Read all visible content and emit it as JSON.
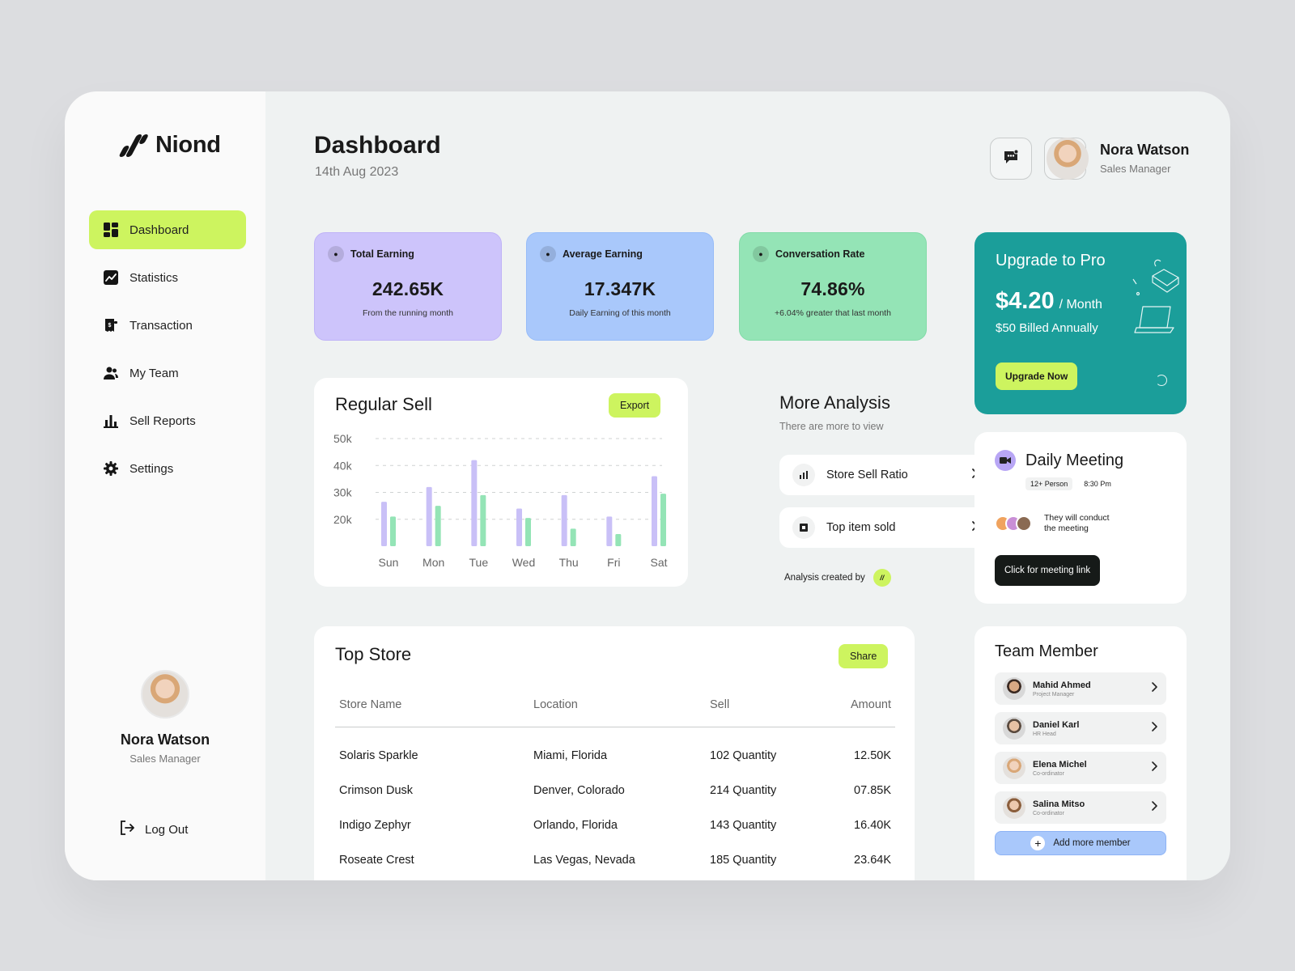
{
  "brand": {
    "name": "Niond"
  },
  "sidebar": {
    "items": [
      {
        "label": "Dashboard",
        "icon": "grid-icon"
      },
      {
        "label": "Statistics",
        "icon": "chart-line-icon"
      },
      {
        "label": "Transaction",
        "icon": "receipt-icon"
      },
      {
        "label": "My Team",
        "icon": "team-icon"
      },
      {
        "label": "Sell Reports",
        "icon": "bar-chart-icon"
      },
      {
        "label": "Settings",
        "icon": "gear-icon"
      }
    ],
    "profile": {
      "name": "Nora Watson",
      "role": "Sales Manager"
    },
    "logout_label": "Log Out"
  },
  "header": {
    "title": "Dashboard",
    "date": "14th Aug 2023",
    "user": {
      "name": "Nora Watson",
      "role": "Sales Manager"
    }
  },
  "stats": [
    {
      "label": "Total Earning",
      "value": "242.65K",
      "sub": "From the running month",
      "color": "#cdc4fb"
    },
    {
      "label": "Average Earning",
      "value": "17.347K",
      "sub": "Daily Earning of this month",
      "color": "#a9c8fb"
    },
    {
      "label": "Conversation  Rate",
      "value": "74.86%",
      "sub": "+6.04% greater that last month",
      "color": "#94e4b6"
    }
  ],
  "upgrade": {
    "title": "Upgrade to Pro",
    "price": "$4.20",
    "period": "/ Month",
    "billed": "$50 Billed Annually",
    "button": "Upgrade Now"
  },
  "regular_sell": {
    "title": "Regular Sell",
    "export_label": "Export"
  },
  "chart_data": {
    "type": "bar",
    "categories": [
      "Sun",
      "Mon",
      "Tue",
      "Wed",
      "Thu",
      "Fri",
      "Sat"
    ],
    "y_ticks": [
      "50k",
      "40k",
      "30k",
      "20k"
    ],
    "ylim": [
      10,
      50
    ],
    "series": [
      {
        "values": [
          26.5,
          32,
          42,
          24,
          29,
          21,
          36
        ],
        "color": "#c9c0f7"
      },
      {
        "values": [
          21,
          25,
          29,
          20.5,
          16.5,
          14.5,
          29.5
        ],
        "color": "#94e4b6"
      }
    ],
    "grid": true
  },
  "more_analysis": {
    "title": "More  Analysis",
    "subtitle": "There are more to view",
    "items": [
      {
        "label": "Store Sell Ratio"
      },
      {
        "label": "Top item sold"
      }
    ],
    "created_by": "Analysis created by"
  },
  "meeting": {
    "title": "Daily Meeting",
    "persons": "12+ Person",
    "time": "8:30 Pm",
    "desc_line1": "They will conduct",
    "desc_line2": "the meeting",
    "button": "Click for meeting link"
  },
  "top_store": {
    "title": "Top Store",
    "share_label": "Share",
    "columns": [
      "Store Name",
      "Location",
      "Sell",
      "Amount"
    ],
    "rows": [
      [
        "Solaris Sparkle",
        "Miami, Florida",
        "102 Quantity",
        "12.50K"
      ],
      [
        "Crimson Dusk",
        "Denver, Colorado",
        "214 Quantity",
        "07.85K"
      ],
      [
        "Indigo Zephyr",
        "Orlando, Florida",
        "143 Quantity",
        "16.40K"
      ],
      [
        "Roseate Crest",
        "Las Vegas, Nevada",
        "185 Quantity",
        "23.64K"
      ]
    ]
  },
  "team": {
    "title": "Team Member",
    "members": [
      {
        "name": "Mahid Ahmed",
        "role": "Project Manager"
      },
      {
        "name": "Daniel Karl",
        "role": "HR Head"
      },
      {
        "name": "Elena Michel",
        "role": "Co-ordinator"
      },
      {
        "name": "Salina Mitso",
        "role": "Co-ordinator"
      }
    ],
    "add_label": "Add more member"
  }
}
